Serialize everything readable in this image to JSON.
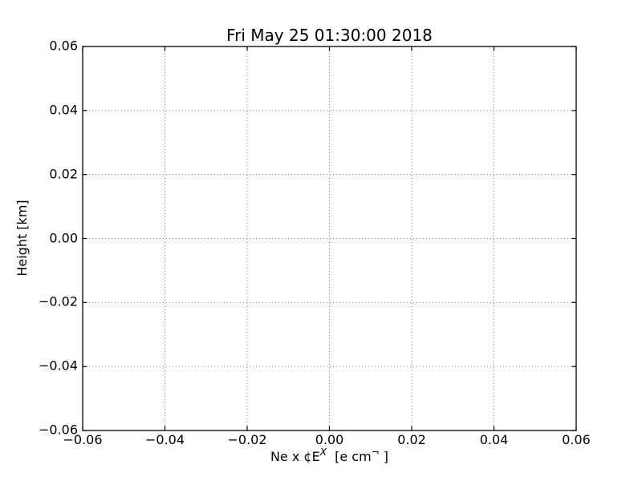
{
  "figure": {
    "background": "#ffffff",
    "frame_color": "#000000",
    "text_color": "#000000"
  },
  "chart_data": {
    "type": "line",
    "title": "Fri May 25 01:30:00 2018",
    "ylabel": "Height [km]",
    "xlabel_parts": {
      "pre": "Ne x ¢E",
      "sup1": "X",
      "mid": "  [e cm",
      "sup2": "¬",
      "post": " ]"
    },
    "xlim": [
      -0.06,
      0.06
    ],
    "ylim": [
      -0.06,
      0.06
    ],
    "xticks": {
      "values": [
        -0.06,
        -0.04,
        -0.02,
        0.0,
        0.02,
        0.04,
        0.06
      ],
      "labels": [
        "−0.06",
        "−0.04",
        "−0.02",
        "0.00",
        "0.02",
        "0.04",
        "0.06"
      ]
    },
    "yticks": {
      "values": [
        -0.06,
        -0.04,
        -0.02,
        0.0,
        0.02,
        0.04,
        0.06
      ],
      "labels": [
        "−0.06",
        "−0.04",
        "−0.02",
        "0.00",
        "0.02",
        "0.04",
        "0.06"
      ]
    },
    "grid": {
      "visible": true,
      "linestyle": "dotted",
      "color": "#777777"
    },
    "tick_direction": "in",
    "series": []
  }
}
